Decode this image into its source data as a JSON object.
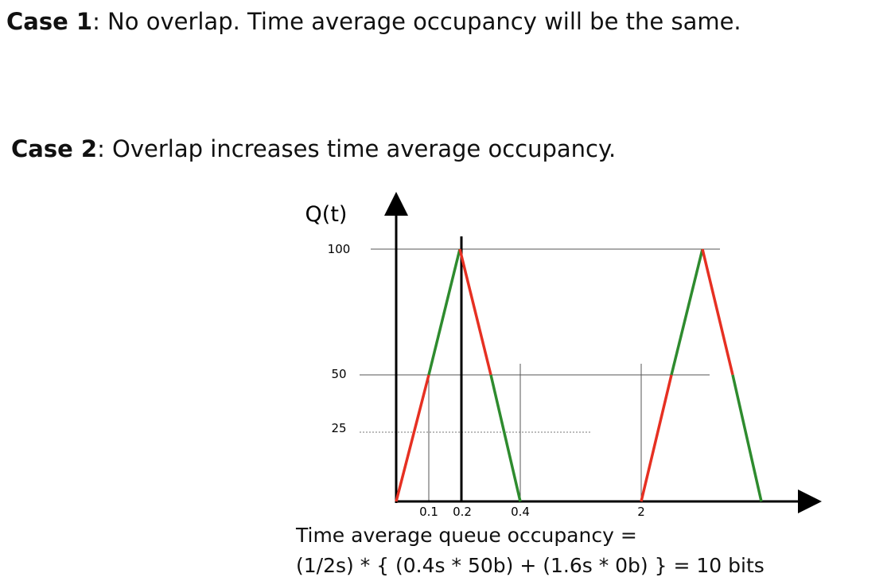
{
  "case1": {
    "label": "Case 1",
    "text": ": No overlap. Time average occupancy will be the same."
  },
  "case2": {
    "label": "Case 2",
    "text": ": Overlap increases time average occupancy."
  },
  "graph": {
    "ylabel": "Q(t)",
    "yticks": [
      {
        "value": 100,
        "label": "100"
      },
      {
        "value": 50,
        "label": "50"
      },
      {
        "value": 25,
        "label": "25"
      }
    ],
    "xticks": [
      {
        "value": 0.1,
        "label": "0.1"
      },
      {
        "value": 0.2,
        "label": "0.2"
      },
      {
        "value": 0.4,
        "label": "0.4"
      },
      {
        "value": 2,
        "label": "2"
      }
    ],
    "colors": {
      "arrival": "#2e8b2e",
      "departure": "#e63022",
      "axis": "#000000",
      "guide": "#555555"
    }
  },
  "formula": {
    "line1": "Time average queue occupancy =",
    "line2": "(1/2s) * { (0.4s * 50b) + (1.6s * 0b) } = 10 bits"
  }
}
